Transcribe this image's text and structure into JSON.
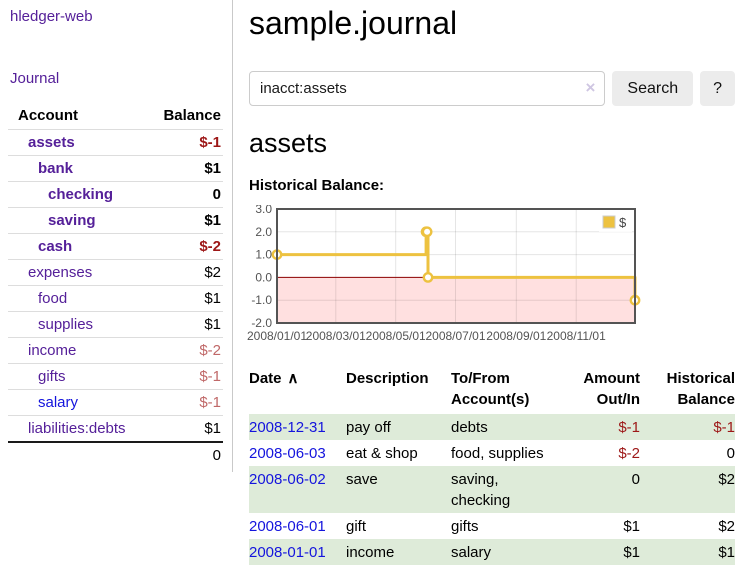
{
  "colors": {
    "link_purple": "#552099",
    "link_blue": "#1414dd",
    "negative_strong": "#9d1717",
    "negative_muted": "#c06868",
    "row_shaded_green": "#deebd9",
    "chart_line": "#edc240",
    "chart_border": "#545454",
    "zero_line": "#8b0000"
  },
  "icons": {
    "sort_ascending": "∧",
    "clear_search": "×"
  },
  "sidebar": {
    "app_title": "hledger-web",
    "journal_label": "Journal",
    "accounts": {
      "header_account": "Account",
      "header_balance": "Balance",
      "rows": [
        {
          "name": "assets",
          "indent": 1,
          "bold": true,
          "balance": "$-1",
          "balance_style": "negative-strong"
        },
        {
          "name": "bank",
          "indent": 2,
          "bold": true,
          "balance": "$1",
          "balance_style": "normal"
        },
        {
          "name": "checking",
          "indent": 3,
          "bold": true,
          "balance": "0",
          "balance_style": "normal"
        },
        {
          "name": "saving",
          "indent": 3,
          "bold": true,
          "balance": "$1",
          "balance_style": "normal"
        },
        {
          "name": "cash",
          "indent": 2,
          "bold": true,
          "balance": "$-2",
          "balance_style": "negative-strong"
        },
        {
          "name": "expenses",
          "indent": 1,
          "bold": false,
          "balance": "$2",
          "balance_style": "normal"
        },
        {
          "name": "food",
          "indent": 2,
          "bold": false,
          "balance": "$1",
          "balance_style": "normal"
        },
        {
          "name": "supplies",
          "indent": 2,
          "bold": false,
          "balance": "$1",
          "balance_style": "normal"
        },
        {
          "name": "income",
          "indent": 1,
          "bold": false,
          "balance": "$-2",
          "balance_style": "negative-muted"
        },
        {
          "name": "gifts",
          "indent": 2,
          "bold": false,
          "balance": "$-1",
          "balance_style": "negative-muted"
        },
        {
          "name": "salary",
          "indent": 2,
          "bold": false,
          "balance": "$-1",
          "balance_style": "negative-muted",
          "link_color": "blue"
        },
        {
          "name": "liabilities:debts",
          "indent": 1,
          "bold": false,
          "balance": "$1",
          "balance_style": "normal"
        }
      ],
      "total": "0"
    }
  },
  "main": {
    "title": "sample.journal",
    "search": {
      "value": "inacct:assets",
      "button_label": "Search",
      "help_label": "?"
    },
    "section_title": "assets",
    "chart_label": "Historical Balance:"
  },
  "chart_data": {
    "type": "line",
    "steps": true,
    "title": "Historical Balance",
    "series": [
      {
        "name": "$",
        "color": "#edc240",
        "points": [
          {
            "date": "2008-01-01",
            "day": 0,
            "value": 1
          },
          {
            "date": "2008-06-01",
            "day": 152,
            "value": 2
          },
          {
            "date": "2008-06-02",
            "day": 153,
            "value": 2
          },
          {
            "date": "2008-06-03",
            "day": 154,
            "value": 0
          },
          {
            "date": "2008-12-31",
            "day": 365,
            "value": -1
          }
        ]
      }
    ],
    "total_days": 365,
    "xticks": [
      {
        "label": "2008/01/01",
        "day": 0
      },
      {
        "label": "2008/03/01",
        "day": 60
      },
      {
        "label": "2008/05/01",
        "day": 121
      },
      {
        "label": "2008/07/01",
        "day": 182
      },
      {
        "label": "2008/09/01",
        "day": 244
      },
      {
        "label": "2008/11/01",
        "day": 305
      }
    ],
    "yticks": [
      "3.0",
      "2.0",
      "1.0",
      "0.0",
      "-1.0",
      "-2.0"
    ],
    "ylim": [
      -2,
      3
    ],
    "grid": true,
    "negative_region_shaded": true,
    "zero_line_color": "#8b0000",
    "legend": {
      "label": "$",
      "position": "top-right"
    }
  },
  "table": {
    "headers": {
      "date": "Date",
      "description": "Description",
      "accounts": "To/From Account(s)",
      "amount": "Amount Out/In",
      "balance": "Historical Balance"
    },
    "rows": [
      {
        "date": "2008-12-31",
        "description": "pay off",
        "accounts": "debts",
        "amount": "$-1",
        "amount_negative": true,
        "balance": "$-1",
        "balance_negative": true,
        "shaded": true
      },
      {
        "date": "2008-06-03",
        "description": "eat & shop",
        "accounts": "food, supplies",
        "amount": "$-2",
        "amount_negative": true,
        "balance": "0",
        "balance_negative": false,
        "shaded": false
      },
      {
        "date": "2008-06-02",
        "description": "save",
        "accounts": "saving, checking",
        "amount": "0",
        "amount_negative": false,
        "balance": "$2",
        "balance_negative": false,
        "shaded": true
      },
      {
        "date": "2008-06-01",
        "description": "gift",
        "accounts": "gifts",
        "amount": "$1",
        "amount_negative": false,
        "balance": "$2",
        "balance_negative": false,
        "shaded": false
      },
      {
        "date": "2008-01-01",
        "description": "income",
        "accounts": "salary",
        "amount": "$1",
        "amount_negative": false,
        "balance": "$1",
        "balance_negative": false,
        "shaded": true
      }
    ]
  }
}
